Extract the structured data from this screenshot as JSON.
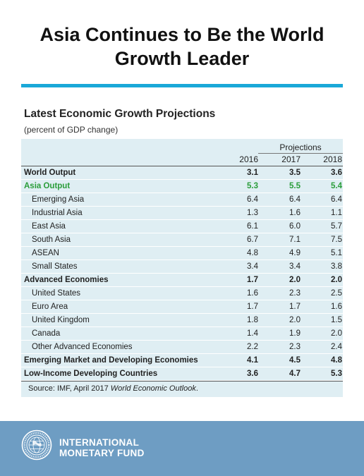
{
  "title_line1": "Asia Continues to Be the World",
  "title_line2": "Growth Leader",
  "table": {
    "title": "Latest Economic Growth Projections",
    "subtitle": "(percent of GDP change)",
    "projections_label": "Projections",
    "years": [
      "2016",
      "2017",
      "2018"
    ],
    "rows": [
      {
        "label": "World Output",
        "values": [
          "3.1",
          "3.5",
          "3.6"
        ]
      },
      {
        "label": "Asia Output",
        "values": [
          "5.3",
          "5.5",
          "5.4"
        ]
      },
      {
        "label": "Emerging Asia",
        "values": [
          "6.4",
          "6.4",
          "6.4"
        ]
      },
      {
        "label": "Industrial Asia",
        "values": [
          "1.3",
          "1.6",
          "1.1"
        ]
      },
      {
        "label": "East Asia",
        "values": [
          "6.1",
          "6.0",
          "5.7"
        ]
      },
      {
        "label": "South Asia",
        "values": [
          "6.7",
          "7.1",
          "7.5"
        ]
      },
      {
        "label": "ASEAN",
        "values": [
          "4.8",
          "4.9",
          "5.1"
        ]
      },
      {
        "label": "Small States",
        "values": [
          "3.4",
          "3.4",
          "3.8"
        ]
      },
      {
        "label": "Advanced Economies",
        "values": [
          "1.7",
          "2.0",
          "2.0"
        ]
      },
      {
        "label": "United States",
        "values": [
          "1.6",
          "2.3",
          "2.5"
        ]
      },
      {
        "label": "Euro Area",
        "values": [
          "1.7",
          "1.7",
          "1.6"
        ]
      },
      {
        "label": "United Kingdom",
        "values": [
          "1.8",
          "2.0",
          "1.5"
        ]
      },
      {
        "label": "Canada",
        "values": [
          "1.4",
          "1.9",
          "2.0"
        ]
      },
      {
        "label": "Other Advanced Economies",
        "values": [
          "2.2",
          "2.3",
          "2.4"
        ]
      },
      {
        "label": "Emerging Market and Developing Economies",
        "values": [
          "4.1",
          "4.5",
          "4.8"
        ]
      },
      {
        "label": "Low-Income Developing Countries",
        "values": [
          "3.6",
          "4.7",
          "5.3"
        ]
      }
    ],
    "source_prefix": "Source: IMF, April 2017 ",
    "source_publication": "World Economic Outlook",
    "source_suffix": "."
  },
  "colors": {
    "title_rule": "#1aa8d8",
    "highlight_green": "#2a9d3a",
    "table_background": "#dfeef3",
    "footer_background": "#6e9dc3"
  },
  "footer": {
    "org_line1": "INTERNATIONAL",
    "org_line2": "MONETARY FUND",
    "seal_icon": "imf-seal-icon"
  }
}
